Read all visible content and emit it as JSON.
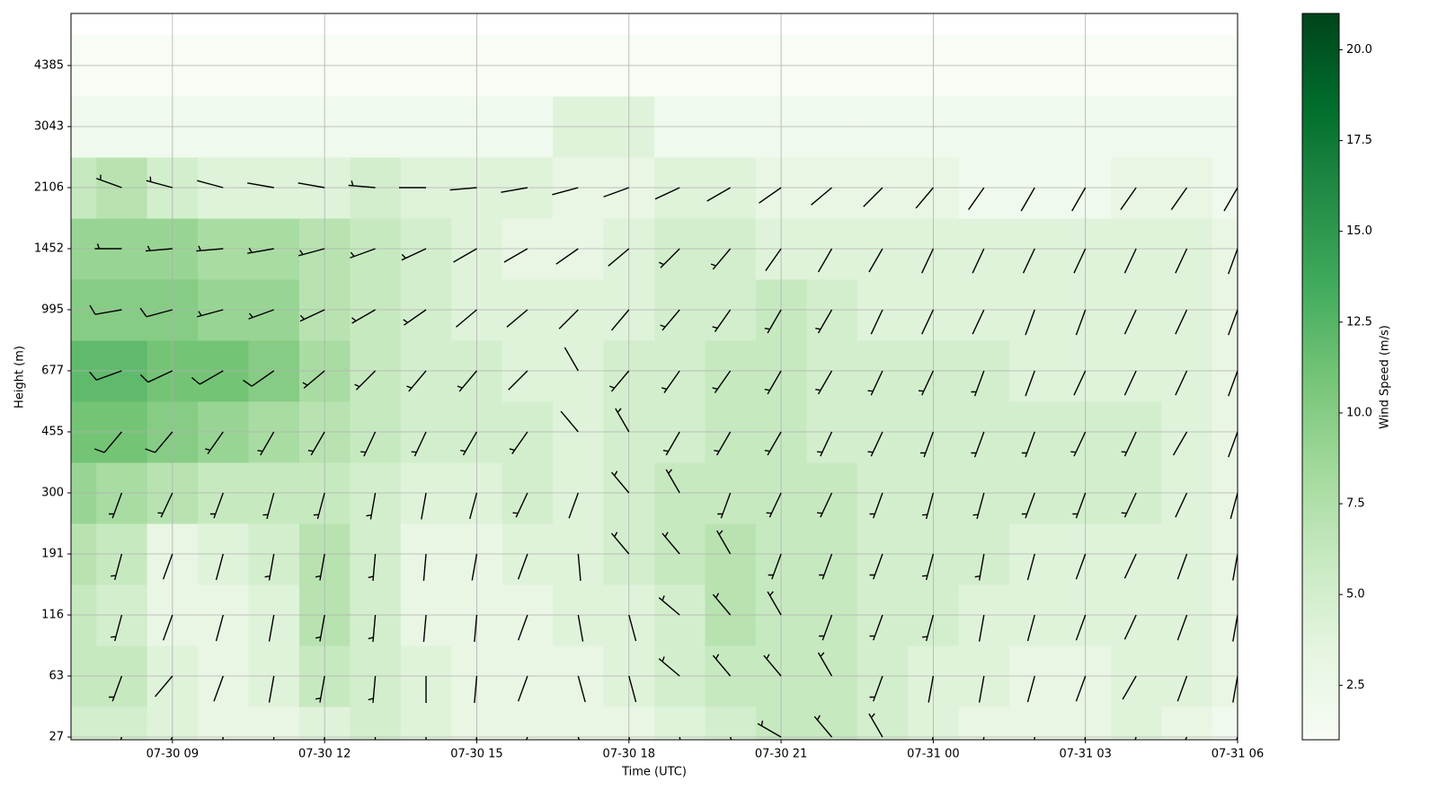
{
  "chart_data": {
    "type": "heatmap",
    "xlabel": "Time (UTC)",
    "ylabel": "Height (m)",
    "colorbar_label": "Wind Speed (m/s)",
    "x": [
      "07-30 07",
      "07-30 08",
      "07-30 09",
      "07-30 10",
      "07-30 11",
      "07-30 12",
      "07-30 13",
      "07-30 14",
      "07-30 15",
      "07-30 16",
      "07-30 17",
      "07-30 18",
      "07-30 19",
      "07-30 20",
      "07-30 21",
      "07-30 22",
      "07-30 23",
      "07-31 00",
      "07-31 01",
      "07-31 02",
      "07-31 03",
      "07-31 04",
      "07-31 05",
      "07-31 06"
    ],
    "y": [
      27,
      63,
      116,
      191,
      300,
      455,
      677,
      995,
      1452,
      2106,
      3043,
      4385
    ],
    "xlim": [
      "07-30 07",
      "07-31 06"
    ],
    "xticks": [
      "07-30 09",
      "07-30 12",
      "07-30 15",
      "07-30 18",
      "07-30 21",
      "07-31 00",
      "07-31 03",
      "07-31 06"
    ],
    "yticks": [
      27,
      63,
      116,
      191,
      300,
      455,
      677,
      995,
      1452,
      2106,
      3043,
      4385
    ],
    "grid": true,
    "colormap": [
      "#f7fcf5",
      "#e5f5e0",
      "#c7e9c0",
      "#a1d99b",
      "#74c476",
      "#41ab5d",
      "#238b45",
      "#006d2c",
      "#00441b"
    ],
    "clim": [
      1,
      21
    ],
    "cticks": [
      {
        "value": 2.5,
        "label": "2.5"
      },
      {
        "value": 5,
        "label": "5.0"
      },
      {
        "value": 7.5,
        "label": "7.5"
      },
      {
        "value": 10,
        "label": "10.0"
      },
      {
        "value": 12.5,
        "label": "12.5"
      },
      {
        "value": 15,
        "label": "15.0"
      },
      {
        "value": 17.5,
        "label": "17.5"
      },
      {
        "value": 20,
        "label": "20.0"
      }
    ],
    "z": [
      [
        5,
        5,
        4,
        3,
        3,
        4,
        5,
        4,
        3,
        3,
        3,
        3,
        4,
        5,
        6,
        6,
        5,
        4,
        3,
        3,
        3,
        4,
        3,
        2
      ],
      [
        6,
        6,
        4,
        3,
        4,
        6,
        5,
        4,
        3,
        3,
        3,
        4,
        5,
        6,
        6,
        6,
        5,
        4,
        4,
        3,
        3,
        4,
        4,
        3
      ],
      [
        6,
        5,
        3,
        3,
        4,
        7,
        5,
        3,
        3,
        3,
        4,
        4,
        5,
        7,
        6,
        6,
        5,
        5,
        4,
        4,
        4,
        4,
        4,
        3
      ],
      [
        7,
        6,
        3,
        4,
        5,
        7,
        5,
        3,
        3,
        4,
        4,
        5,
        6,
        7,
        6,
        6,
        5,
        5,
        5,
        4,
        4,
        4,
        4,
        3
      ],
      [
        9,
        8,
        7,
        6,
        6,
        6,
        5,
        4,
        4,
        5,
        4,
        5,
        6,
        6,
        6,
        6,
        5,
        5,
        5,
        5,
        5,
        5,
        4,
        3
      ],
      [
        11,
        11,
        10,
        9,
        8,
        7,
        6,
        5,
        5,
        5,
        4,
        5,
        5,
        6,
        6,
        5,
        5,
        5,
        5,
        5,
        5,
        5,
        4,
        3
      ],
      [
        12,
        12,
        11,
        11,
        10,
        8,
        6,
        5,
        5,
        4,
        4,
        5,
        5,
        6,
        6,
        5,
        5,
        5,
        5,
        4,
        4,
        4,
        4,
        3
      ],
      [
        10,
        10,
        10,
        9,
        9,
        7,
        6,
        5,
        4,
        4,
        4,
        4,
        5,
        5,
        6,
        5,
        4,
        4,
        4,
        4,
        4,
        4,
        4,
        3
      ],
      [
        9,
        9,
        9,
        8,
        8,
        7,
        6,
        5,
        4,
        3,
        3,
        4,
        5,
        5,
        4,
        4,
        4,
        4,
        4,
        4,
        4,
        4,
        4,
        3
      ],
      [
        6,
        7,
        5,
        4,
        4,
        4,
        5,
        4,
        4,
        4,
        3,
        3,
        4,
        4,
        3,
        3,
        3,
        3,
        2,
        2,
        2,
        3,
        3,
        2
      ],
      [
        2,
        2,
        2,
        2,
        2,
        2,
        2,
        2,
        2,
        2,
        4,
        4,
        2,
        2,
        2,
        2,
        2,
        2,
        2,
        2,
        2,
        2,
        2,
        2
      ],
      [
        1,
        1,
        1,
        1,
        1,
        1,
        1,
        1,
        1,
        1,
        1,
        1,
        1,
        1,
        1,
        1,
        1,
        1,
        1,
        1,
        1,
        1,
        1,
        1
      ]
    ],
    "directions": [
      [
        195,
        200,
        210,
        190,
        185,
        190,
        185,
        180,
        190,
        200,
        160,
        165,
        170,
        160,
        300,
        320,
        330,
        200,
        190,
        185,
        195,
        200,
        210,
        200
      ],
      [
        195,
        200,
        220,
        200,
        190,
        190,
        185,
        180,
        185,
        200,
        165,
        165,
        310,
        320,
        320,
        330,
        200,
        190,
        190,
        195,
        200,
        210,
        200,
        190
      ],
      [
        190,
        195,
        200,
        195,
        190,
        190,
        185,
        185,
        185,
        200,
        170,
        165,
        310,
        320,
        330,
        200,
        200,
        195,
        190,
        195,
        200,
        205,
        200,
        190
      ],
      [
        190,
        195,
        200,
        195,
        190,
        190,
        185,
        185,
        190,
        200,
        175,
        320,
        320,
        330,
        200,
        200,
        200,
        195,
        190,
        195,
        200,
        205,
        200,
        190
      ],
      [
        200,
        200,
        205,
        200,
        195,
        195,
        190,
        190,
        195,
        205,
        200,
        320,
        330,
        200,
        205,
        205,
        200,
        195,
        195,
        200,
        200,
        205,
        205,
        195
      ],
      [
        220,
        220,
        220,
        215,
        210,
        210,
        205,
        205,
        210,
        215,
        320,
        330,
        210,
        210,
        210,
        205,
        205,
        200,
        200,
        200,
        205,
        205,
        210,
        200
      ],
      [
        250,
        250,
        245,
        240,
        235,
        230,
        225,
        220,
        220,
        225,
        330,
        220,
        215,
        215,
        210,
        210,
        205,
        205,
        200,
        200,
        205,
        205,
        205,
        200
      ],
      [
        260,
        260,
        255,
        255,
        250,
        245,
        240,
        235,
        230,
        230,
        225,
        220,
        220,
        215,
        210,
        210,
        205,
        205,
        205,
        200,
        200,
        205,
        205,
        200
      ],
      [
        270,
        270,
        265,
        265,
        260,
        255,
        250,
        245,
        240,
        240,
        235,
        230,
        225,
        220,
        215,
        210,
        210,
        205,
        205,
        205,
        205,
        205,
        205,
        200
      ],
      [
        290,
        290,
        285,
        285,
        280,
        280,
        275,
        270,
        265,
        260,
        255,
        250,
        245,
        240,
        235,
        230,
        225,
        220,
        215,
        210,
        210,
        215,
        215,
        210
      ],
      [
        null,
        null,
        null,
        null,
        null,
        null,
        null,
        null,
        null,
        null,
        null,
        null,
        null,
        null,
        null,
        null,
        null,
        null,
        null,
        null,
        null,
        null,
        null,
        null
      ],
      [
        null,
        null,
        null,
        null,
        null,
        null,
        null,
        null,
        null,
        null,
        null,
        null,
        null,
        null,
        null,
        null,
        null,
        null,
        null,
        null,
        null,
        null,
        null,
        null
      ]
    ]
  }
}
